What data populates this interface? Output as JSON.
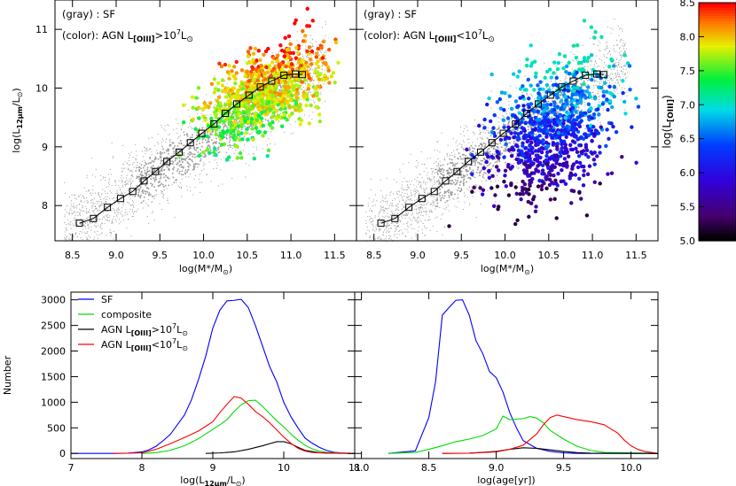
{
  "chart_data": [
    {
      "panel": "top-left",
      "type": "scatter",
      "annotation_line1": "(gray) : SF",
      "annotation_line2_prefix": "(color): AGN  L",
      "annotation_line2_sub": "[OIII]",
      "annotation_line2_suffix": ">10",
      "annotation_line2_exp": "7",
      "annotation_line2_unit": "L",
      "xlabel": "log(M*/M",
      "xlabel_sub": "⊙",
      "ylabel": "log(L",
      "ylabel_sub": "12μm",
      "ylabel_suffix": "/L",
      "ylabel_sub2": "⊙",
      "xlim": [
        8.3,
        11.75
      ],
      "ylim": [
        7.4,
        11.5
      ],
      "x_ticks": [
        "8.5",
        "9.0",
        "9.5",
        "10.0",
        "10.5",
        "11.0",
        "11.5"
      ],
      "y_ticks": [
        "8",
        "9",
        "10",
        "11"
      ],
      "sf_cloud_color": "#9a9a9a",
      "median_line": {
        "x": [
          8.58,
          8.74,
          8.9,
          9.05,
          9.19,
          9.32,
          9.45,
          9.58,
          9.72,
          9.85,
          9.98,
          10.12,
          10.25,
          10.38,
          10.52,
          10.65,
          10.78,
          10.92,
          11.05,
          11.13
        ],
        "y": [
          7.7,
          7.78,
          7.97,
          8.12,
          8.24,
          8.42,
          8.58,
          8.75,
          8.91,
          9.07,
          9.23,
          9.39,
          9.57,
          9.73,
          9.88,
          10.02,
          10.12,
          10.22,
          10.24,
          10.23
        ]
      },
      "agn_cloud": {
        "center": [
          10.7,
          9.9
        ],
        "spread": [
          0.35,
          0.35
        ],
        "l_oiii_range": [
          7.0,
          8.5
        ]
      }
    },
    {
      "panel": "top-right",
      "type": "scatter",
      "annotation_line1": "(gray) : SF",
      "annotation_line2_prefix": "(color): AGN  L",
      "annotation_line2_sub": "[OIII]",
      "annotation_line2_suffix": "<10",
      "annotation_line2_exp": "7",
      "annotation_line2_unit": "L",
      "xlabel": "log(M*/M",
      "xlabel_sub": "⊙",
      "xlim": [
        8.3,
        11.75
      ],
      "ylim": [
        7.4,
        11.5
      ],
      "x_ticks": [
        "8.5",
        "9.0",
        "9.5",
        "10.0",
        "10.5",
        "11.0",
        "11.5"
      ],
      "agn_cloud": {
        "center": [
          10.55,
          9.3
        ],
        "spread": [
          0.35,
          0.55
        ],
        "l_oiii_range": [
          5.0,
          7.2
        ]
      },
      "colorbar": {
        "label": "log(L",
        "label_sub": "[OIII]",
        "range": [
          5.0,
          8.5
        ],
        "ticks": [
          "5.0",
          "5.5",
          "6.0",
          "6.5",
          "7.0",
          "7.5",
          "8.0",
          "8.5"
        ]
      }
    },
    {
      "panel": "bottom-left",
      "type": "line",
      "ylabel": "Number",
      "xlabel": "log(L",
      "xlabel_sub": "12μm",
      "xlabel_suffix": "/L",
      "xlabel_sub2": "⊙",
      "xlim": [
        7.0,
        11.0
      ],
      "ylim": [
        -100,
        3150
      ],
      "x_ticks": [
        "7",
        "8",
        "9",
        "10",
        "11"
      ],
      "y_ticks": [
        "0",
        "500",
        "1000",
        "1500",
        "2000",
        "2500",
        "3000"
      ],
      "legend": [
        {
          "label": "SF",
          "color": "#0000ff"
        },
        {
          "label": "composite",
          "color": "#00dd00"
        },
        {
          "label": "AGN  L",
          "sub": "[OIII]",
          "rel": ">10",
          "exp": "7",
          "unit": "L",
          "color": "#000000"
        },
        {
          "label": "AGN  L",
          "sub": "[OIII]",
          "rel": "<10",
          "exp": "7",
          "unit": "L",
          "color": "#ff0000"
        }
      ],
      "series": [
        {
          "name": "SF",
          "color": "#0000ff",
          "x": [
            7.0,
            7.6,
            7.8,
            8.0,
            8.1,
            8.2,
            8.3,
            8.4,
            8.5,
            8.6,
            8.7,
            8.8,
            8.9,
            9.0,
            9.1,
            9.2,
            9.3,
            9.4,
            9.5,
            9.6,
            9.7,
            9.8,
            9.9,
            10.0,
            10.1,
            10.2,
            10.3,
            10.4,
            10.5,
            10.6,
            10.7,
            10.8,
            11.0
          ],
          "y": [
            0,
            0,
            5,
            30,
            70,
            140,
            250,
            370,
            560,
            750,
            1050,
            1450,
            1900,
            2450,
            2800,
            2980,
            2990,
            3010,
            2850,
            2500,
            2100,
            1700,
            1400,
            1000,
            720,
            500,
            300,
            200,
            120,
            60,
            25,
            10,
            0
          ]
        },
        {
          "name": "composite",
          "color": "#00dd00",
          "x": [
            8.0,
            8.2,
            8.4,
            8.6,
            8.8,
            9.0,
            9.1,
            9.2,
            9.3,
            9.4,
            9.5,
            9.6,
            9.7,
            9.8,
            9.9,
            10.0,
            10.1,
            10.2,
            10.3,
            10.4,
            10.5,
            10.6,
            10.8,
            11.0
          ],
          "y": [
            0,
            15,
            60,
            150,
            290,
            470,
            560,
            660,
            820,
            950,
            1030,
            1040,
            920,
            780,
            640,
            520,
            380,
            260,
            160,
            90,
            45,
            20,
            5,
            0
          ]
        },
        {
          "name": "AGN L[OIII]>10^7",
          "color": "#000000",
          "x": [
            8.9,
            9.1,
            9.3,
            9.5,
            9.7,
            9.8,
            9.9,
            10.0,
            10.1,
            10.2,
            10.3,
            10.5,
            10.7,
            11.0
          ],
          "y": [
            0,
            10,
            30,
            80,
            150,
            190,
            230,
            230,
            190,
            120,
            60,
            15,
            5,
            0
          ]
        },
        {
          "name": "AGN L[OIII]<10^7",
          "color": "#ff0000",
          "x": [
            7.6,
            8.0,
            8.2,
            8.4,
            8.6,
            8.8,
            9.0,
            9.1,
            9.2,
            9.3,
            9.4,
            9.5,
            9.6,
            9.7,
            9.8,
            9.9,
            10.0,
            10.1,
            10.2,
            10.3,
            10.4,
            10.6,
            10.8,
            11.0
          ],
          "y": [
            0,
            10,
            80,
            190,
            310,
            440,
            620,
            800,
            960,
            1110,
            1080,
            960,
            820,
            720,
            600,
            460,
            320,
            200,
            100,
            45,
            20,
            5,
            2,
            0
          ]
        }
      ]
    },
    {
      "panel": "bottom-right",
      "type": "line",
      "xlabel": "log(age[yr])",
      "xlim": [
        7.95,
        10.2
      ],
      "ylim": [
        -100,
        3150
      ],
      "x_ticks": [
        "8.0",
        "8.5",
        "9.0",
        "9.5",
        "10.0"
      ],
      "series": [
        {
          "name": "SF",
          "color": "#0000ff",
          "x": [
            8.2,
            8.4,
            8.5,
            8.55,
            8.6,
            8.65,
            8.7,
            8.75,
            8.8,
            8.85,
            8.9,
            8.95,
            9.0,
            9.05,
            9.1,
            9.15,
            9.2,
            9.3,
            9.4,
            9.5,
            9.6,
            10.2
          ],
          "y": [
            0,
            50,
            700,
            1400,
            2700,
            2850,
            2990,
            3000,
            2700,
            2200,
            1950,
            1600,
            1480,
            1200,
            800,
            500,
            250,
            100,
            40,
            10,
            0,
            0
          ]
        },
        {
          "name": "composite",
          "color": "#00dd00",
          "x": [
            8.2,
            8.4,
            8.5,
            8.6,
            8.7,
            8.8,
            8.9,
            9.0,
            9.05,
            9.1,
            9.2,
            9.25,
            9.3,
            9.35,
            9.4,
            9.5,
            9.6,
            9.7,
            9.8,
            10.2
          ],
          "y": [
            0,
            20,
            80,
            150,
            230,
            280,
            350,
            480,
            730,
            660,
            680,
            720,
            690,
            600,
            450,
            280,
            140,
            60,
            20,
            0
          ]
        },
        {
          "name": "AGN L[OIII]>10^7",
          "color": "#000000",
          "x": [
            8.6,
            8.8,
            9.0,
            9.1,
            9.2,
            9.3,
            9.4,
            9.5,
            9.6,
            9.7,
            10.2
          ],
          "y": [
            0,
            5,
            40,
            80,
            110,
            100,
            70,
            40,
            15,
            5,
            0
          ]
        },
        {
          "name": "AGN L[OIII]<10^7",
          "color": "#ff0000",
          "x": [
            8.6,
            8.8,
            9.0,
            9.1,
            9.2,
            9.3,
            9.35,
            9.4,
            9.45,
            9.5,
            9.6,
            9.7,
            9.8,
            9.9,
            9.95,
            10.0,
            10.05,
            10.1,
            10.2
          ],
          "y": [
            0,
            5,
            30,
            80,
            160,
            380,
            560,
            700,
            750,
            720,
            660,
            620,
            560,
            400,
            260,
            150,
            80,
            40,
            0
          ]
        }
      ]
    }
  ]
}
